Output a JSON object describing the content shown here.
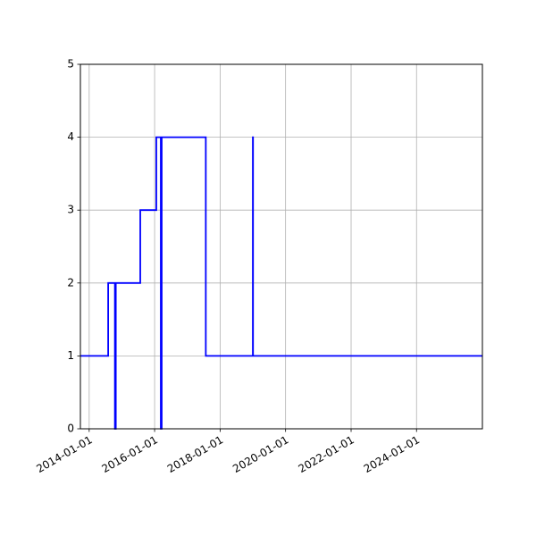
{
  "chart_data": {
    "type": "line",
    "drawstyle": "steps-post",
    "title": "",
    "xlabel": "",
    "ylabel": "",
    "x_scale": "date",
    "xlim": [
      "2013-09-25",
      "2026-01-05"
    ],
    "ylim": [
      0,
      5
    ],
    "grid": true,
    "legend": null,
    "x_ticks": [
      "2014-01-01",
      "2016-01-01",
      "2018-01-01",
      "2020-01-01",
      "2022-01-01",
      "2024-01-01"
    ],
    "x_tick_labels": [
      "2014-01-01",
      "2016-01-01",
      "2018-01-01",
      "2020-01-01",
      "2022-01-01",
      "2024-01-01"
    ],
    "y_ticks": [
      0,
      1,
      2,
      3,
      4,
      5
    ],
    "y_tick_labels": [
      "0",
      "1",
      "2",
      "3",
      "4",
      "5"
    ],
    "series": [
      {
        "color": "#0000ff",
        "x": [
          "2013-09-25",
          "2014-08-01",
          "2014-10-15",
          "2014-10-25",
          "2015-07-25",
          "2016-01-20",
          "2016-03-10",
          "2016-03-20",
          "2017-07-25",
          "2019-01-01",
          "2019-01-03",
          "2026-01-05"
        ],
        "y": [
          1,
          2,
          0,
          2,
          3,
          4,
          0,
          4,
          1,
          4,
          1,
          1
        ]
      }
    ]
  }
}
